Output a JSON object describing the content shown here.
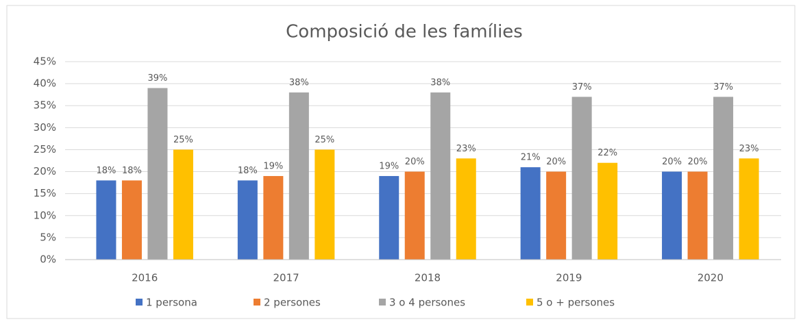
{
  "chart_data": {
    "type": "bar",
    "title": "Composició de les famílies",
    "categories": [
      "2016",
      "2017",
      "2018",
      "2019",
      "2020"
    ],
    "series": [
      {
        "name": "1 persona",
        "color": "#4472c4",
        "values": [
          18,
          18,
          19,
          21,
          20
        ],
        "value_labels": [
          "18%",
          "18%",
          "19%",
          "21%",
          "20%"
        ]
      },
      {
        "name": "2 persones",
        "color": "#ed7d31",
        "values": [
          18,
          19,
          20,
          20,
          20
        ],
        "value_labels": [
          "18%",
          "19%",
          "20%",
          "20%",
          "20%"
        ]
      },
      {
        "name": "3 o 4 persones",
        "color": "#a5a5a5",
        "values": [
          39,
          38,
          38,
          37,
          37
        ],
        "value_labels": [
          "39%",
          "38%",
          "38%",
          "37%",
          "37%"
        ]
      },
      {
        "name": "5 o + persones",
        "color": "#ffc000",
        "values": [
          25,
          25,
          23,
          22,
          23
        ],
        "value_labels": [
          "25%",
          "25%",
          "23%",
          "22%",
          "23%"
        ]
      }
    ],
    "ylim": [
      0,
      45
    ],
    "yticks": [
      {
        "value": 0,
        "label": "0%"
      },
      {
        "value": 5,
        "label": "5%"
      },
      {
        "value": 10,
        "label": "10%"
      },
      {
        "value": 15,
        "label": "15%"
      },
      {
        "value": 20,
        "label": "20%"
      },
      {
        "value": 25,
        "label": "25%"
      },
      {
        "value": 30,
        "label": "30%"
      },
      {
        "value": 35,
        "label": "35%"
      },
      {
        "value": 40,
        "label": "40%"
      },
      {
        "value": 45,
        "label": "45%"
      }
    ],
    "grid": true,
    "legend": "bottom"
  }
}
